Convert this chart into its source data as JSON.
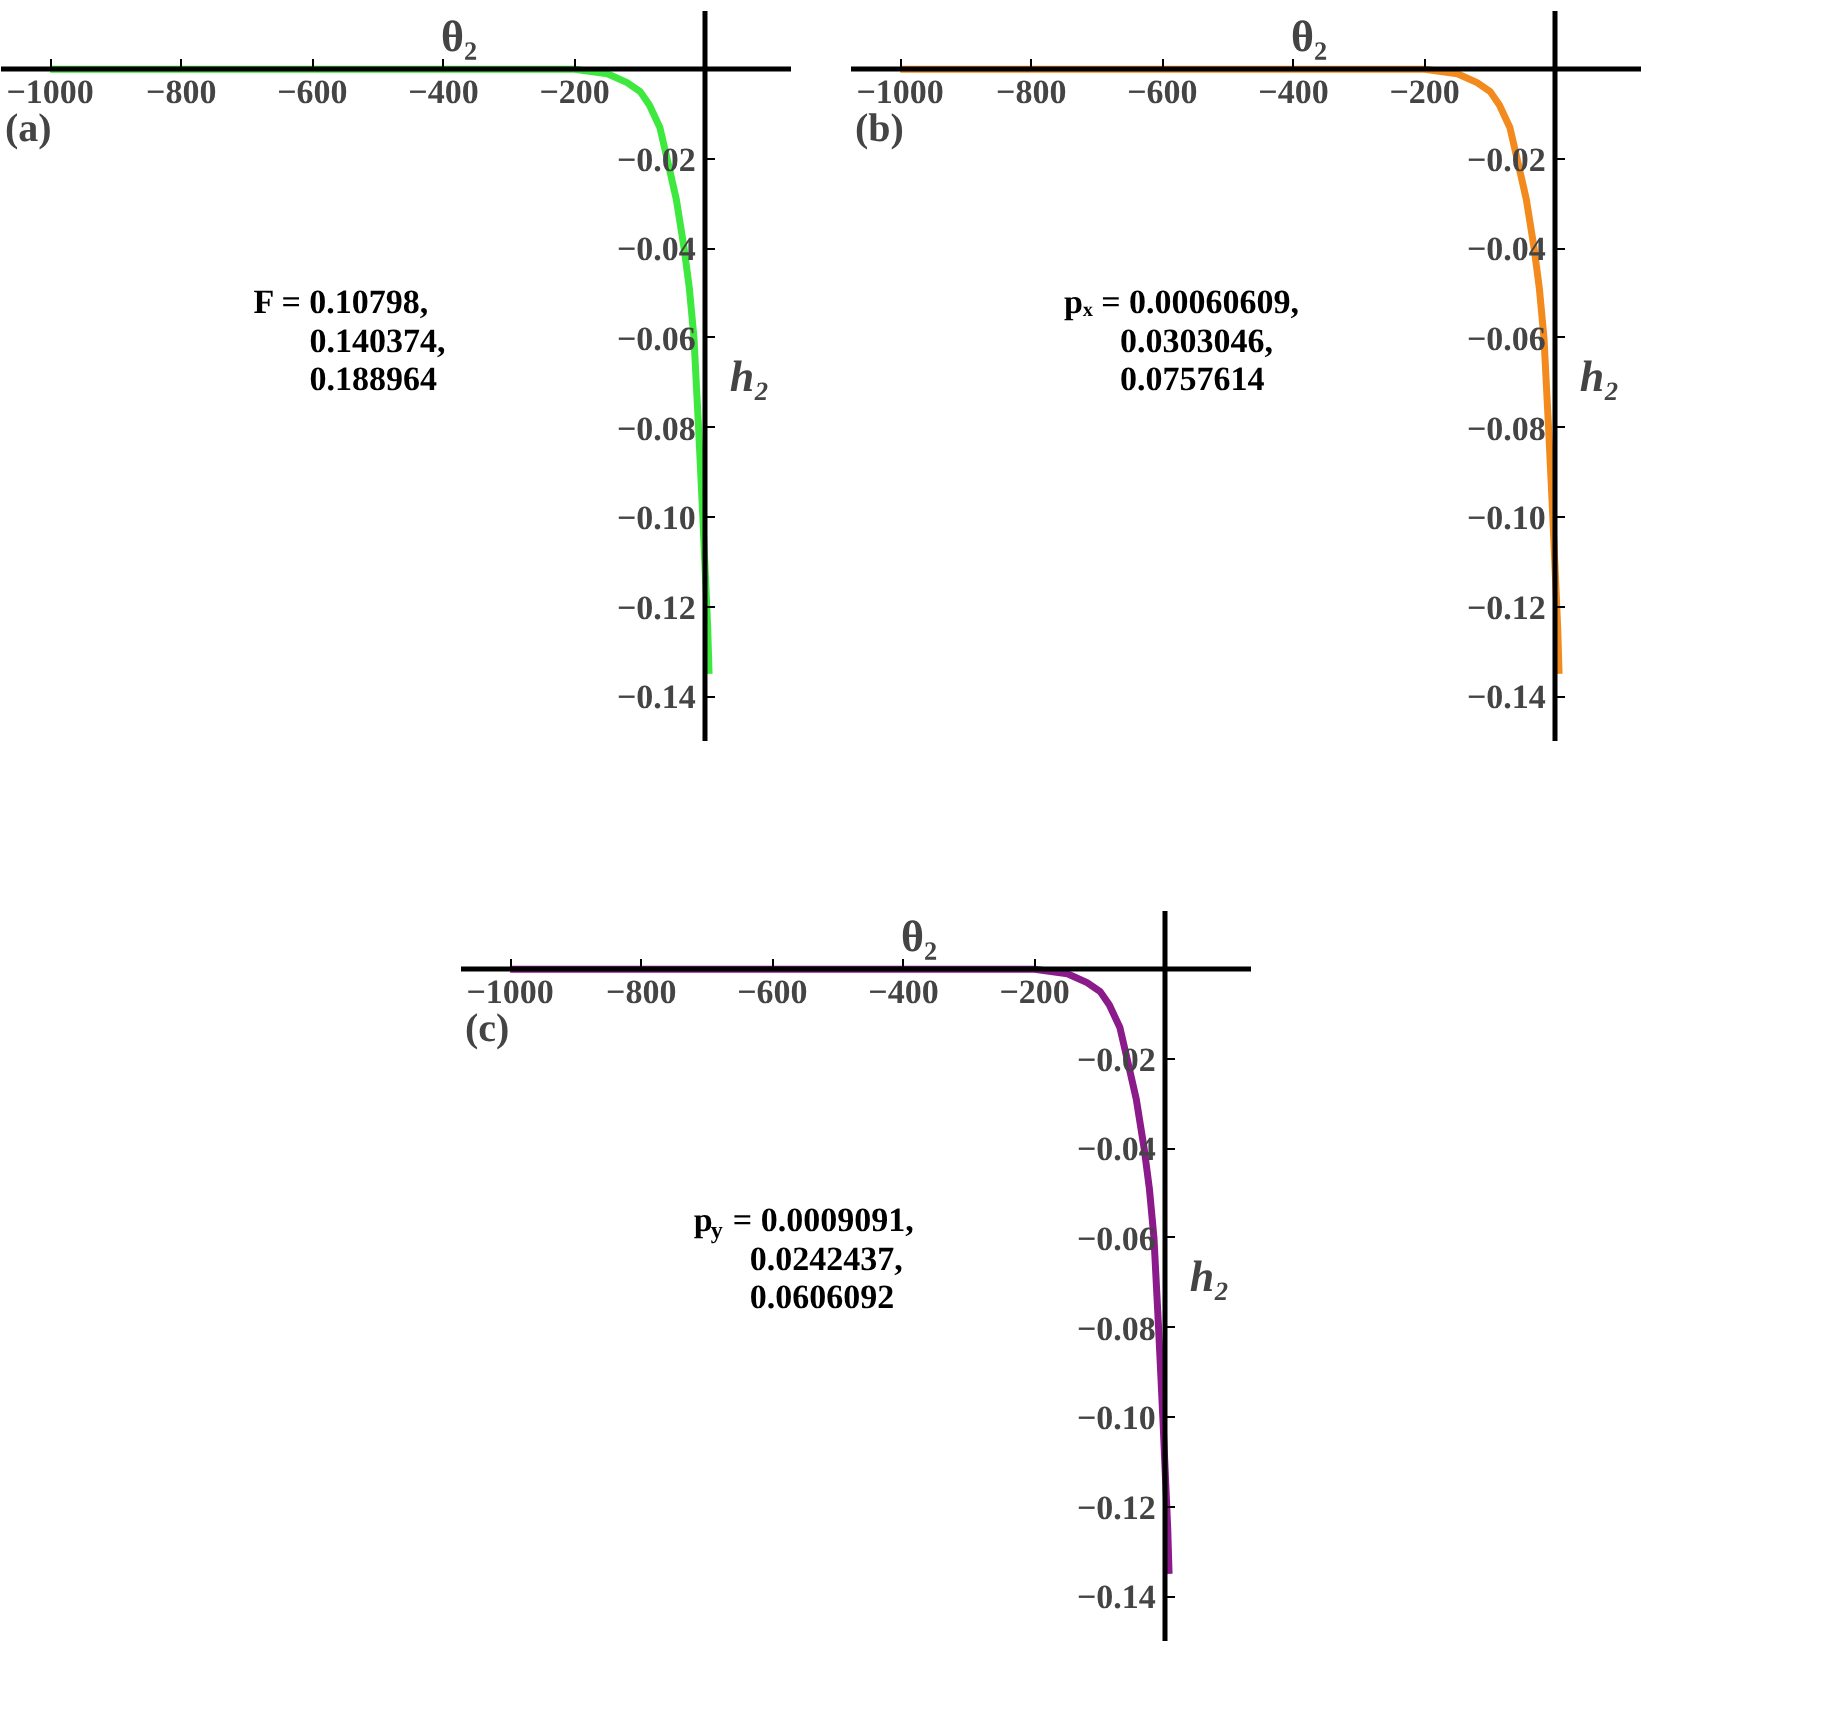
{
  "chart_data": [
    {
      "type": "line",
      "xlabel": "θ₂",
      "ylabel": "h₂",
      "xlim": [
        -1075,
        130
      ],
      "ylim": [
        -0.15,
        0.013
      ],
      "xticks": [
        -1000,
        -800,
        -600,
        -400,
        -200
      ],
      "yticks": [
        {
          "value": -0.02,
          "label": "−0.02"
        },
        {
          "value": -0.04,
          "label": "−0.04"
        },
        {
          "value": -0.06,
          "label": "−0.06"
        },
        {
          "value": -0.08,
          "label": "−0.08"
        },
        {
          "value": -0.1,
          "label": "−0.10"
        },
        {
          "value": -0.12,
          "label": "−0.12"
        },
        {
          "value": -0.14,
          "label": "−0.14"
        }
      ],
      "x": [
        -1000,
        -800,
        -600,
        -400,
        -200,
        -150,
        -120,
        -100,
        -86,
        -70,
        -59,
        -45,
        -33,
        -25,
        -18,
        -11,
        -4.5,
        0,
        3,
        5
      ],
      "series": [
        {
          "color": "#3ee83e",
          "values": [
            0,
            0,
            0,
            0,
            0,
            -0.001,
            -0.003,
            -0.005,
            -0.008,
            -0.013,
            -0.02,
            -0.029,
            -0.04,
            -0.049,
            -0.06,
            -0.08,
            -0.1,
            -0.115,
            -0.125,
            -0.135
          ]
        }
      ],
      "annotations": [
        "(a)",
        "F = 0.10798,\n0.140374,\n0.188964"
      ]
    },
    {
      "type": "line",
      "xlabel": "θ₂",
      "ylabel": "h₂",
      "xlim": [
        -1075,
        130
      ],
      "ylim": [
        -0.15,
        0.013
      ],
      "xticks": [
        -1000,
        -800,
        -600,
        -400,
        -200
      ],
      "yticks": [
        {
          "value": -0.02,
          "label": "−0.02"
        },
        {
          "value": -0.04,
          "label": "−0.04"
        },
        {
          "value": -0.06,
          "label": "−0.06"
        },
        {
          "value": -0.08,
          "label": "−0.08"
        },
        {
          "value": -0.1,
          "label": "−0.10"
        },
        {
          "value": -0.12,
          "label": "−0.12"
        },
        {
          "value": -0.14,
          "label": "−0.14"
        }
      ],
      "x": [
        -1000,
        -800,
        -600,
        -400,
        -200,
        -150,
        -120,
        -100,
        -86,
        -70,
        -59,
        -45,
        -33,
        -25,
        -18,
        -11,
        -4.5,
        0,
        3,
        5
      ],
      "series": [
        {
          "color": "#f28a1e",
          "values": [
            0,
            0,
            0,
            0,
            0,
            -0.001,
            -0.003,
            -0.005,
            -0.008,
            -0.013,
            -0.02,
            -0.029,
            -0.04,
            -0.049,
            -0.06,
            -0.08,
            -0.1,
            -0.115,
            -0.125,
            -0.135
          ]
        }
      ],
      "annotations": [
        "(b)",
        "pₓ = 0.00060609,\n0.0303046,\n0.0757614"
      ]
    },
    {
      "type": "line",
      "xlabel": "θ₂",
      "ylabel": "h₂",
      "xlim": [
        -1075,
        130
      ],
      "ylim": [
        -0.15,
        0.013
      ],
      "xticks": [
        -1000,
        -800,
        -600,
        -400,
        -200
      ],
      "yticks": [
        {
          "value": -0.02,
          "label": "−0.02"
        },
        {
          "value": -0.04,
          "label": "−0.04"
        },
        {
          "value": -0.06,
          "label": "−0.06"
        },
        {
          "value": -0.08,
          "label": "−0.08"
        },
        {
          "value": -0.1,
          "label": "−0.10"
        },
        {
          "value": -0.12,
          "label": "−0.12"
        },
        {
          "value": -0.14,
          "label": "−0.14"
        }
      ],
      "x": [
        -1000,
        -800,
        -600,
        -400,
        -200,
        -150,
        -120,
        -100,
        -86,
        -70,
        -59,
        -45,
        -33,
        -25,
        -18,
        -11,
        -4.5,
        0,
        3,
        5
      ],
      "series": [
        {
          "color": "#8b1a8b",
          "values": [
            0,
            0,
            0,
            0,
            0,
            -0.001,
            -0.003,
            -0.005,
            -0.008,
            -0.013,
            -0.02,
            -0.029,
            -0.04,
            -0.049,
            -0.06,
            -0.08,
            -0.1,
            -0.115,
            -0.125,
            -0.135
          ]
        }
      ],
      "annotations": [
        "(c)",
        "p$_{y}$ = 0.0009091,\n0.0242437,\n0.0606092"
      ]
    }
  ]
}
